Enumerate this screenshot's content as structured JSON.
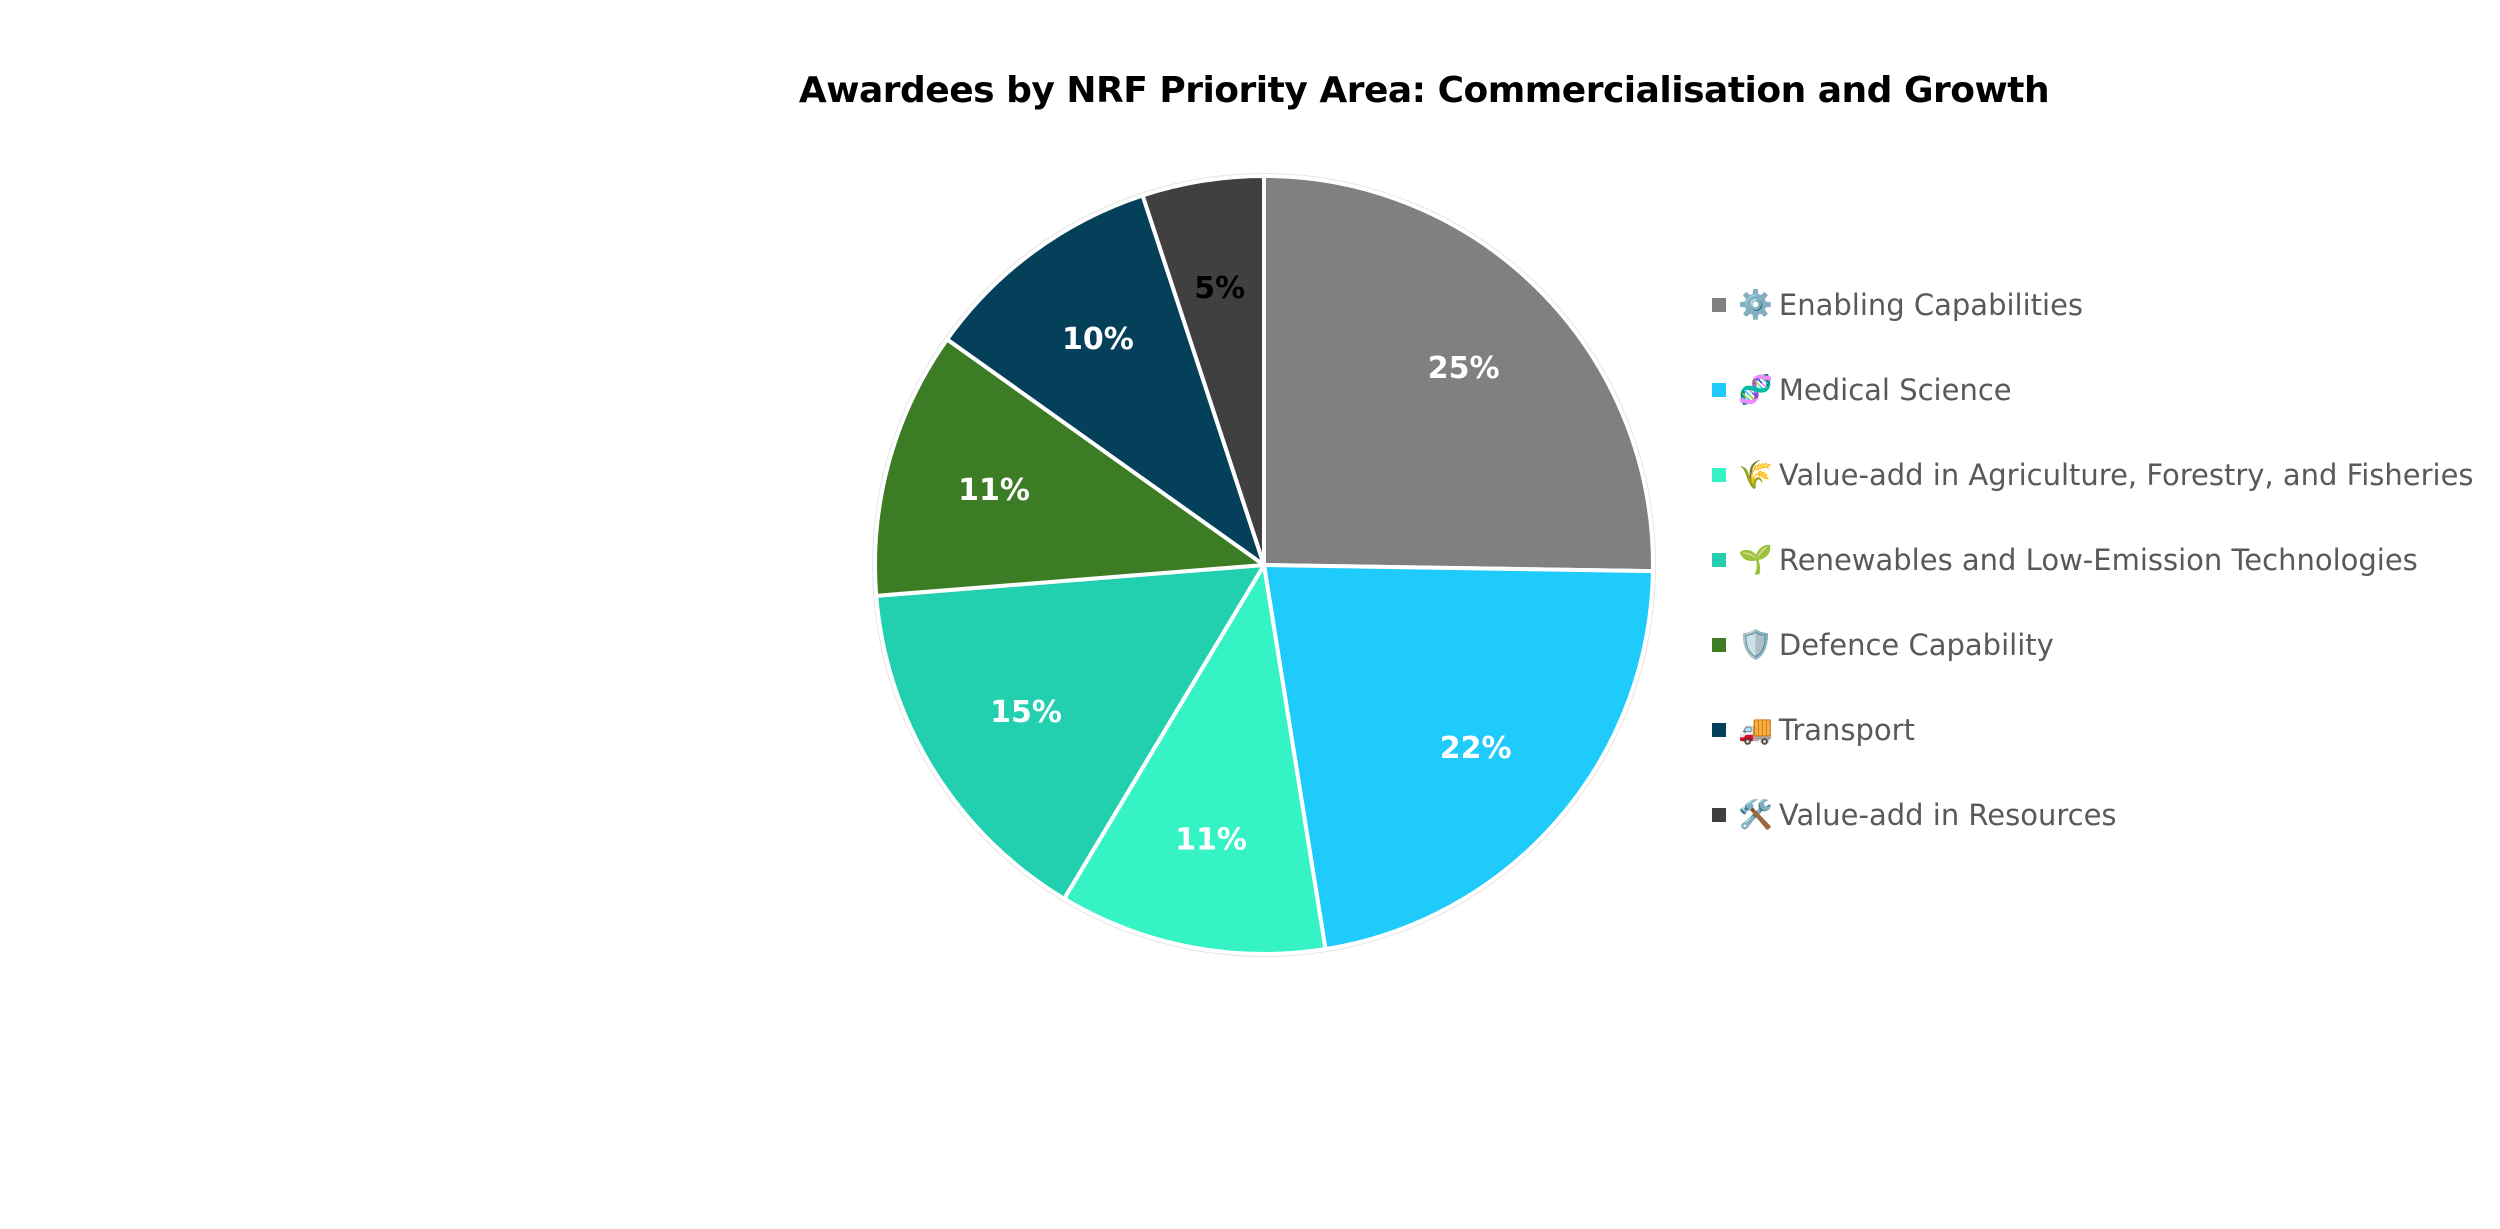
{
  "chart_data": {
    "type": "pie",
    "title": "Awardees by NRF Priority Area: Commercialisation and Growth",
    "legend_position": "right",
    "slices": [
      {
        "label": "Enabling Capabilities",
        "icon": "gear-icon",
        "glyph": "⚙️",
        "value": 25,
        "value_label": "25%",
        "color": "#808080",
        "label_color": "#ffffff"
      },
      {
        "label": "Medical Science",
        "icon": "dna-icon",
        "glyph": "🧬",
        "value": 22,
        "value_label": "22%",
        "color": "#1ECBFA",
        "label_color": "#ffffff"
      },
      {
        "label": "Value-add in Agriculture, Forestry, and Fisheries",
        "icon": "wheat-icon",
        "glyph": "🌾",
        "value": 11,
        "value_label": "11%",
        "color": "#36F3C6",
        "label_color": "#ffffff"
      },
      {
        "label": "Renewables and Low-Emission Technologies",
        "icon": "seedling-icon",
        "glyph": "🌱",
        "value": 15,
        "value_label": "15%",
        "color": "#22D0B0",
        "label_color": "#ffffff"
      },
      {
        "label": "Defence Capability",
        "icon": "shield-icon",
        "glyph": "🛡️",
        "value": 11,
        "value_label": "11%",
        "color": "#3B7C24",
        "label_color": "#ffffff"
      },
      {
        "label": "Transport",
        "icon": "truck-icon",
        "glyph": "🚚",
        "value": 10,
        "value_label": "10%",
        "color": "#05405B",
        "label_color": "#ffffff"
      },
      {
        "label": "Value-add in Resources",
        "icon": "hammer-wrench-icon",
        "glyph": "🛠️",
        "value": 5,
        "value_label": "5%",
        "color": "#404040",
        "label_color": "#000000"
      }
    ]
  }
}
